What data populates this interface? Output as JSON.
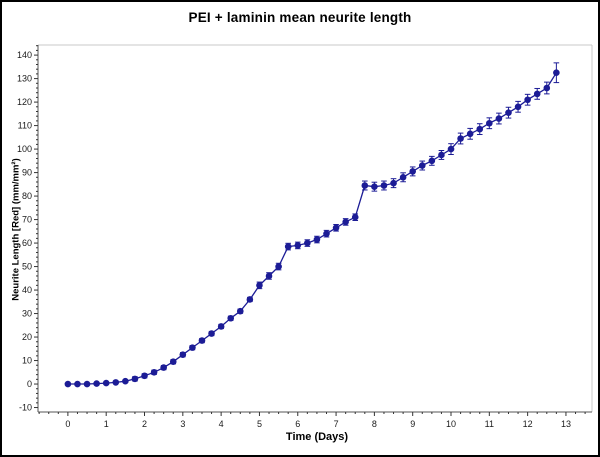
{
  "window": {
    "bg": "#ffffff",
    "border_color": "#000000"
  },
  "chart_data": {
    "type": "line",
    "title": "PEI + laminin mean neurite length",
    "xlabel": "Time (Days)",
    "ylabel": "Neurite Length [Red] (mm/mm²)",
    "xlim": [
      -0.78,
      13.68
    ],
    "ylim": [
      -11.9,
      144.3
    ],
    "x_major_ticks": [
      0,
      1,
      2,
      3,
      4,
      5,
      6,
      7,
      8,
      9,
      10,
      11,
      12,
      13
    ],
    "y_major_ticks": [
      -10,
      0,
      10,
      20,
      30,
      40,
      50,
      60,
      70,
      80,
      90,
      100,
      110,
      120,
      130,
      140
    ],
    "x_minor_step": 0.25,
    "y_minor_step": 2,
    "grid": false,
    "legend": "none",
    "frame_color_light": "#c8c8c8",
    "axis_color": "#555555",
    "tick_color": "#333333",
    "series": [
      {
        "name": "PEI + laminin",
        "color": "#1c1c96",
        "marker": "circle",
        "x": [
          0,
          0.25,
          0.5,
          0.75,
          1,
          1.25,
          1.5,
          1.75,
          2,
          2.25,
          2.5,
          2.75,
          3,
          3.25,
          3.5,
          3.75,
          4,
          4.25,
          4.5,
          4.75,
          5,
          5.25,
          5.5,
          5.75,
          6,
          6.25,
          6.5,
          6.75,
          7,
          7.25,
          7.5,
          7.75,
          8,
          8.25,
          8.5,
          8.75,
          9,
          9.25,
          9.5,
          9.75,
          10,
          10.25,
          10.5,
          10.75,
          11,
          11.25,
          11.5,
          11.75,
          12,
          12.25,
          12.5,
          12.75
        ],
        "y": [
          0,
          0,
          0,
          0.2,
          0.4,
          0.7,
          1.2,
          2.2,
          3.5,
          5,
          7,
          9.5,
          12.5,
          15.5,
          18.5,
          21.5,
          24.5,
          28,
          31,
          36,
          42,
          46,
          50,
          58.5,
          59,
          60,
          61.5,
          64,
          66.5,
          69,
          71,
          84.5,
          84,
          84.5,
          85.5,
          88,
          90.5,
          93,
          95,
          97.5,
          100,
          104.5,
          106.5,
          108.5,
          111,
          113,
          115.5,
          118,
          121,
          123.5,
          126,
          132.5
        ],
        "yerr": [
          0.4,
          0.4,
          0.4,
          0.4,
          0.4,
          0.4,
          0.4,
          0.9,
          0.9,
          0.9,
          0.9,
          0.9,
          0.9,
          0.9,
          0.9,
          0.9,
          0.9,
          0.9,
          0.9,
          0.9,
          1.4,
          1.4,
          1.4,
          1.4,
          1.4,
          1.4,
          1.4,
          1.4,
          1.4,
          1.4,
          1.4,
          1.9,
          1.9,
          1.9,
          1.9,
          1.9,
          1.9,
          1.9,
          1.9,
          1.9,
          2.3,
          2.3,
          2.3,
          2.3,
          2.3,
          2.3,
          2.3,
          2.3,
          2.3,
          2.3,
          2.5,
          4.2
        ]
      }
    ]
  }
}
